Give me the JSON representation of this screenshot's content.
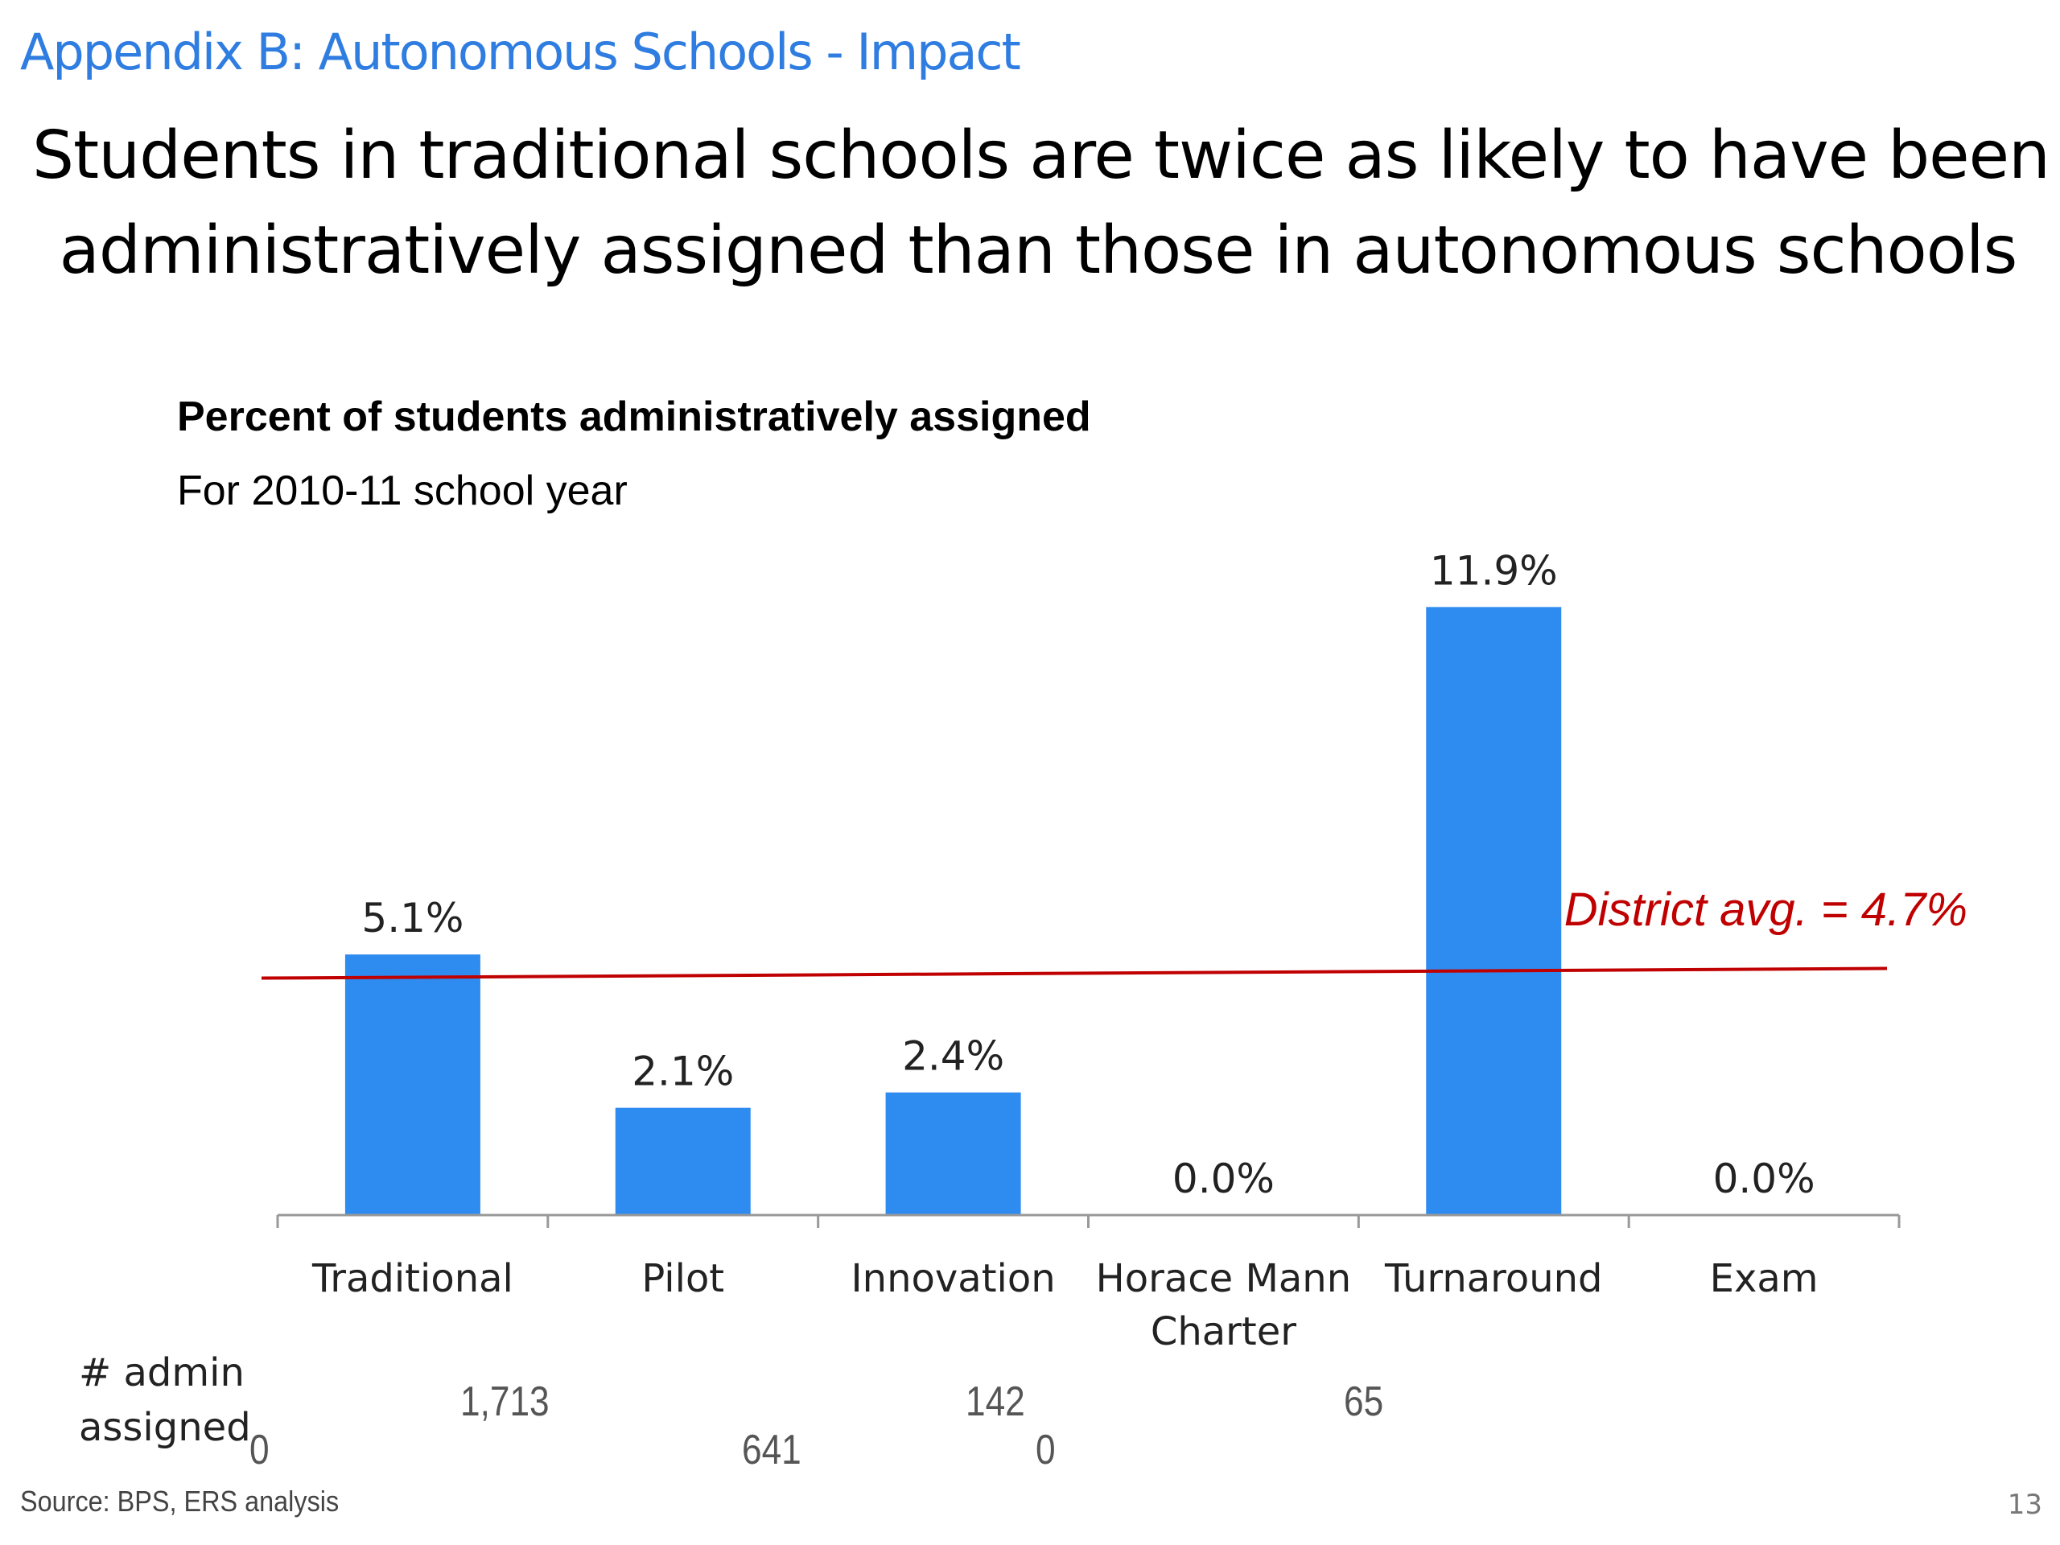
{
  "slide": {
    "section_title": "Appendix B: Autonomous Schools - Impact",
    "headline_line1": "Students in traditional schools are twice as likely to have been",
    "headline_line2": "administratively assigned than those in autonomous schools",
    "admin_label_line1": "# admin",
    "admin_label_line2": "assigned",
    "admin_counts": [
      "0",
      "1,713",
      "641",
      "142",
      "0",
      "65"
    ],
    "source": "Source: BPS, ERS analysis",
    "page_number": "13"
  },
  "chart_data": {
    "type": "bar",
    "title": "Percent of students administratively assigned",
    "subtitle": "For 2010-11 school year",
    "categories": [
      [
        "Traditional"
      ],
      [
        "Pilot"
      ],
      [
        "Innovation"
      ],
      [
        "Horace Mann",
        "Charter"
      ],
      [
        "Turnaround"
      ],
      [
        "Exam"
      ]
    ],
    "values": [
      5.1,
      2.1,
      2.4,
      0.0,
      11.9,
      0.0
    ],
    "data_labels": [
      "5.1%",
      "2.1%",
      "2.4%",
      "0.0%",
      "11.9%",
      "0.0%"
    ],
    "ylim": [
      0,
      12
    ],
    "grid": false,
    "bar_color": "#2e8bf0",
    "reference_line": {
      "value": 4.7,
      "label": "District avg. = 4.7%",
      "color": "#c00000"
    }
  }
}
